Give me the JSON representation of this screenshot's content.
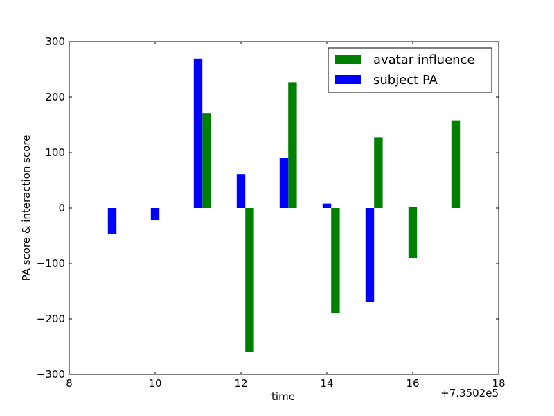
{
  "chart_data": {
    "type": "bar",
    "title": "",
    "xlabel": "time",
    "ylabel": "PA score & interaction score",
    "x_offset_label": "+7.3502e5",
    "xlim": [
      8,
      18
    ],
    "ylim": [
      -300,
      300
    ],
    "xticks": [
      "8",
      "10",
      "12",
      "14",
      "16",
      "18"
    ],
    "yticks": [
      "−300",
      "−200",
      "−100",
      "0",
      "100",
      "200",
      "300"
    ],
    "grid": false,
    "legend_position": "top-right",
    "series": [
      {
        "name": "avatar influence",
        "color": "#008000",
        "x": [
          11.2,
          12.2,
          13.2,
          14.2,
          15.2,
          16.0,
          17.0
        ],
        "values": [
          171,
          -260,
          227,
          -190,
          127,
          -90,
          158
        ]
      },
      {
        "name": "subject PA",
        "color": "#0000ff",
        "x": [
          9.0,
          10.0,
          11.0,
          12.0,
          13.0,
          14.0,
          15.0,
          16.0
        ],
        "values": [
          -47,
          -22,
          269,
          61,
          90,
          8,
          -170,
          1
        ]
      }
    ]
  }
}
